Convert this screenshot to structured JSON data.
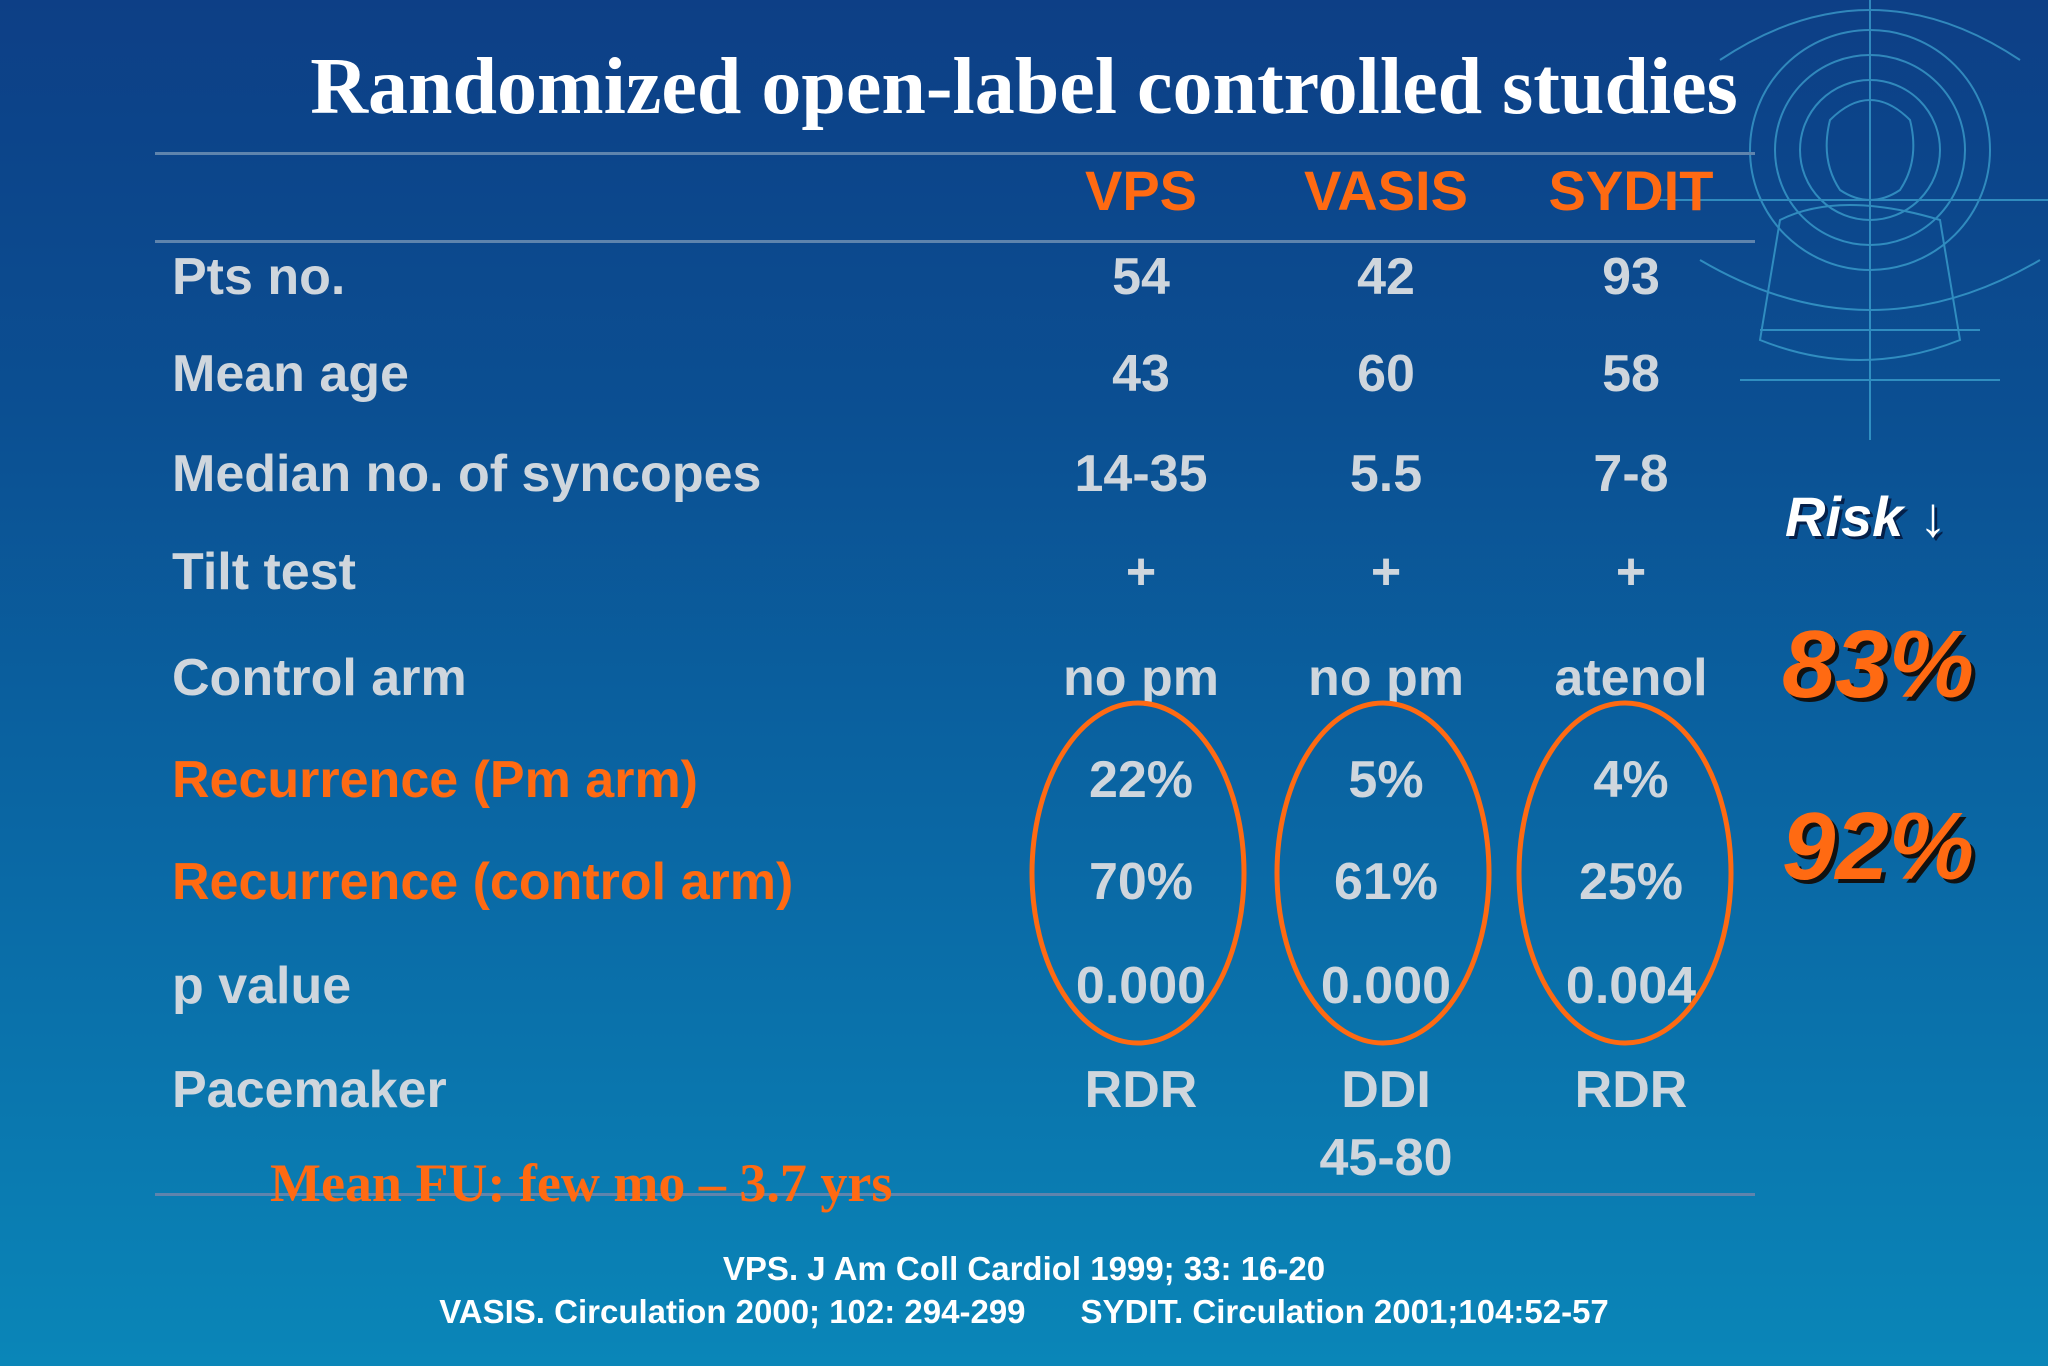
{
  "title": "Randomized open-label controlled studies",
  "columns": [
    "VPS",
    "VASIS",
    "SYDIT"
  ],
  "rows": [
    {
      "label": "Pts no.",
      "accent": false,
      "values": [
        "54",
        "42",
        "93"
      ]
    },
    {
      "label": "Mean age",
      "accent": false,
      "values": [
        "43",
        "60",
        "58"
      ]
    },
    {
      "label": "Median no. of syncopes",
      "accent": false,
      "values": [
        "14-35",
        "5.5",
        "7-8"
      ]
    },
    {
      "label": "Tilt test",
      "accent": false,
      "values": [
        "+",
        "+",
        "+"
      ]
    },
    {
      "label": "Control arm",
      "accent": false,
      "values": [
        "no pm",
        "no pm",
        "atenol"
      ]
    },
    {
      "label": "Recurrence (Pm arm)",
      "accent": true,
      "values": [
        "22%",
        "5%",
        "4%"
      ]
    },
    {
      "label": "Recurrence (control arm)",
      "accent": true,
      "values": [
        "70%",
        "61%",
        "25%"
      ]
    },
    {
      "label": "p value",
      "accent": false,
      "values": [
        "0.000",
        "0.000",
        "0.004"
      ]
    },
    {
      "label": "Pacemaker",
      "accent": false,
      "values": [
        "RDR",
        "DDI",
        "RDR"
      ],
      "extra": [
        "",
        "45-80",
        ""
      ]
    }
  ],
  "side": {
    "risk_label": "Risk ↓",
    "values": [
      "83%",
      "92%"
    ]
  },
  "mean_fu": "Mean FU: few mo – 3.7 yrs",
  "references": [
    "VPS. J Am Coll Cardiol 1999; 33: 16-20",
    "VASIS. Circulation 2000; 102: 294-299      SYDIT. Circulation 2001;104:52-57"
  ],
  "colors": {
    "accent": "#ff6a12",
    "text": "#cfd6dd",
    "background_top": "#0d3f86",
    "background_bottom": "#0a86b8"
  }
}
